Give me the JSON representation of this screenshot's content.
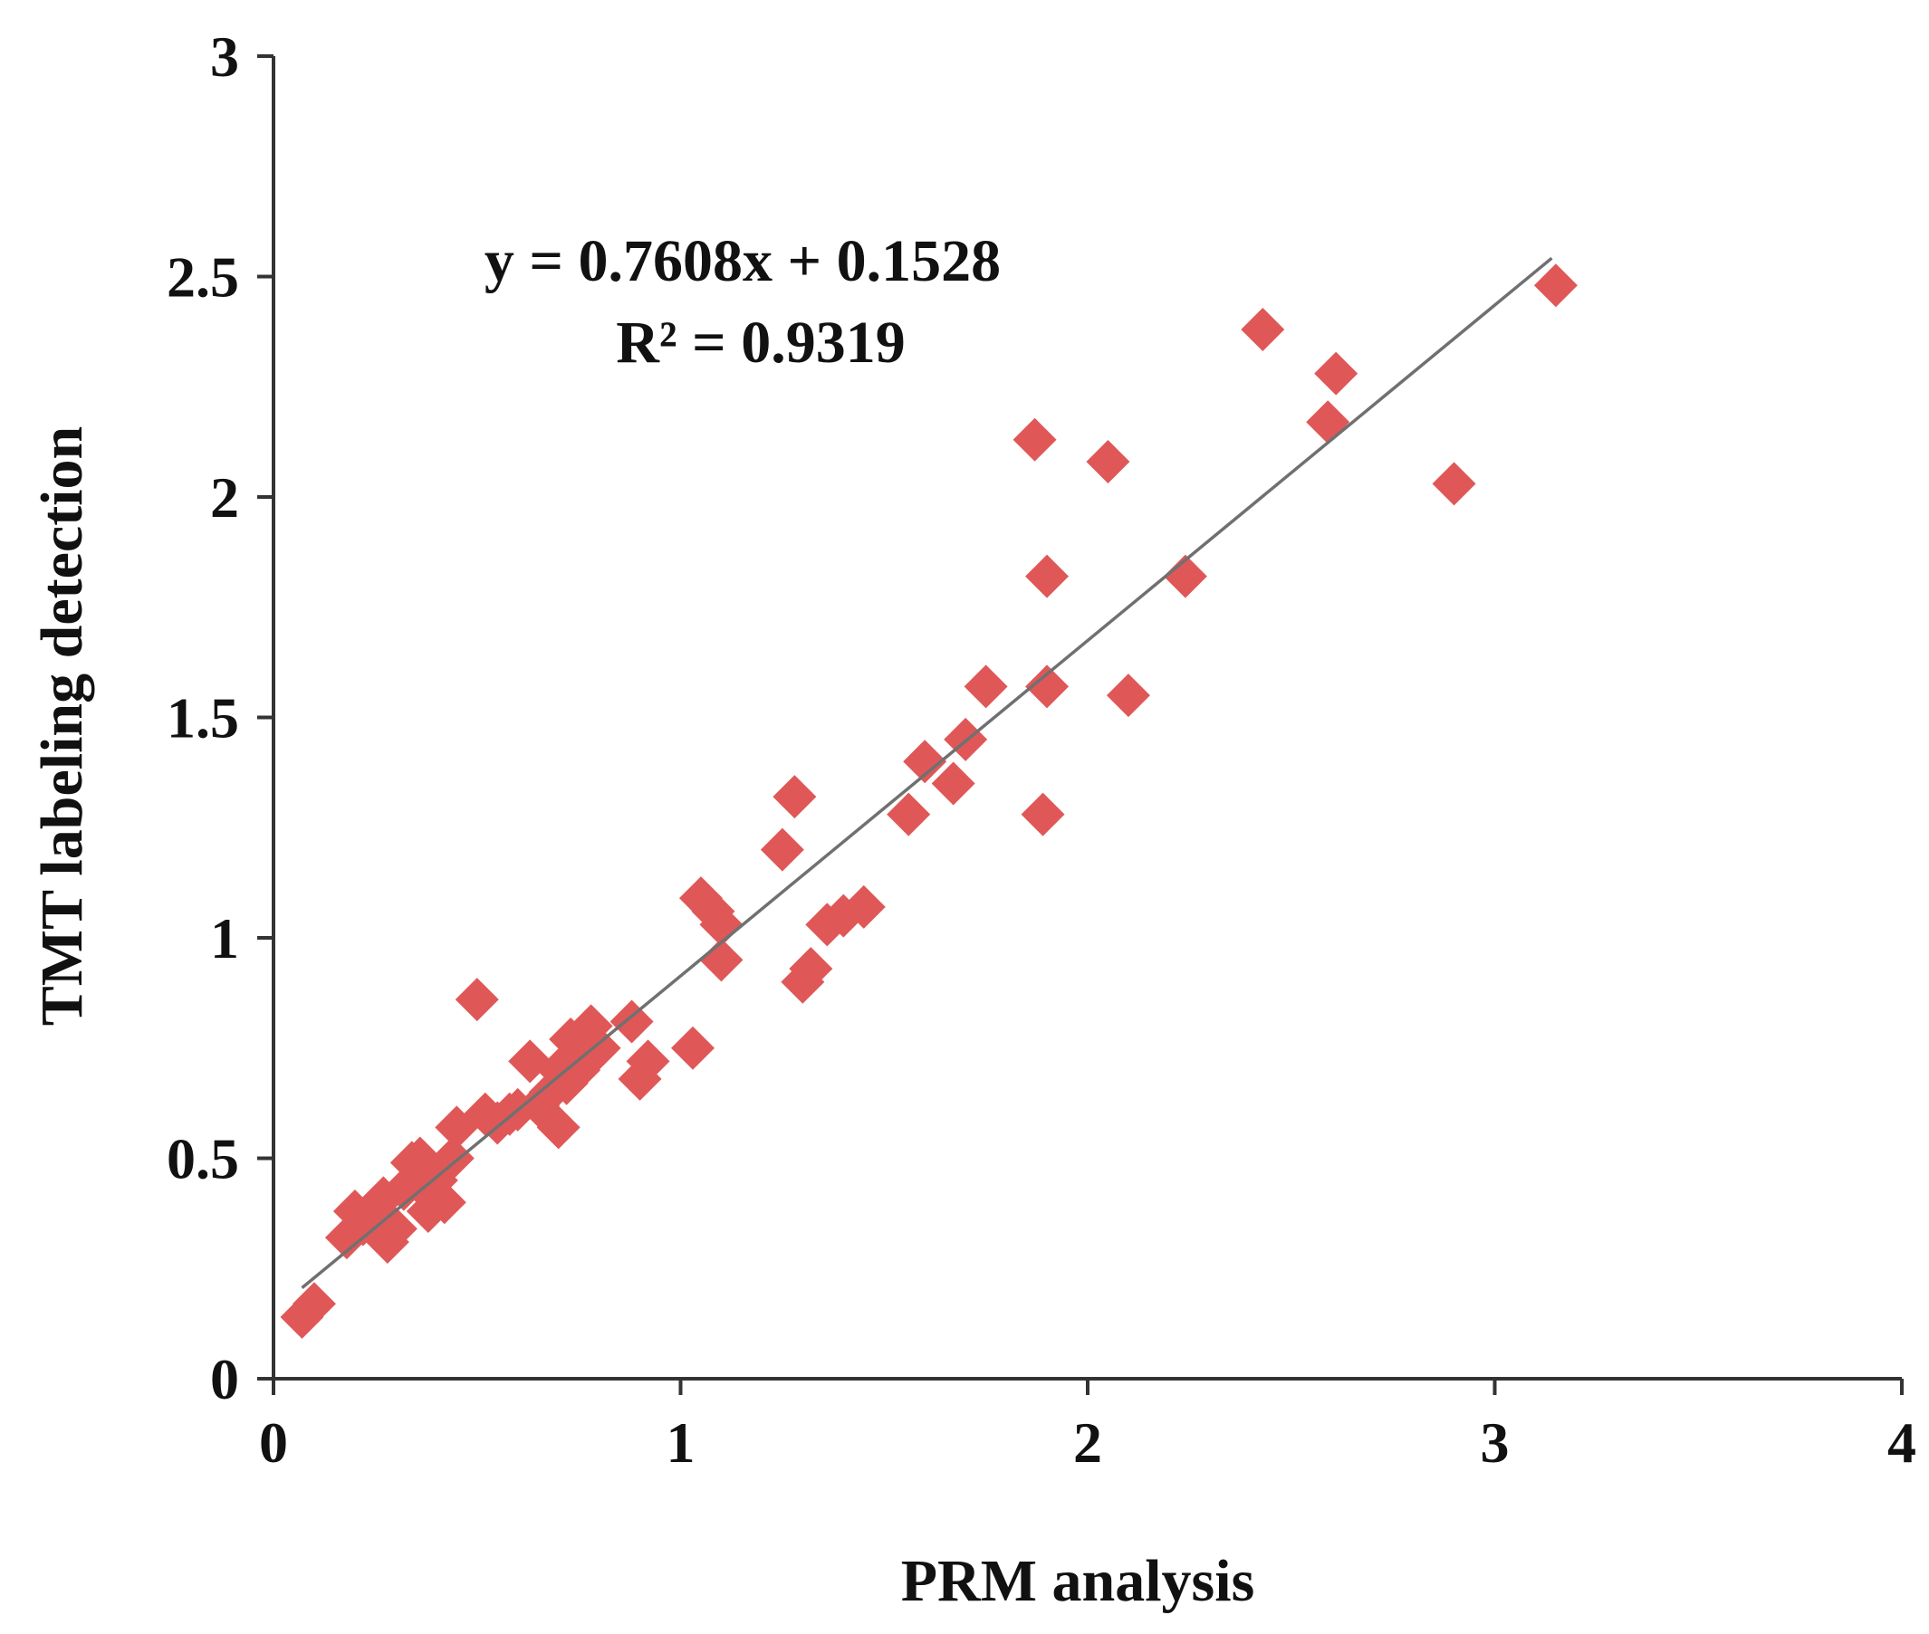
{
  "chart_data": {
    "type": "scatter",
    "xlabel": "PRM analysis",
    "ylabel": "TMT labeling detection",
    "xlim": [
      0,
      4
    ],
    "ylim": [
      0,
      3
    ],
    "xticks": [
      "0",
      "1",
      "2",
      "3",
      "4"
    ],
    "yticks": [
      "0",
      "0.5",
      "1",
      "1.5",
      "2",
      "2.5",
      "3"
    ],
    "grid": false,
    "legend": "none",
    "marker": "diamond",
    "marker_color": "#e05757",
    "trendline_color": "#707070",
    "trendline": {
      "slope": 0.7608,
      "intercept": 0.1528,
      "x_range": [
        0.07,
        3.14
      ],
      "equation": "y = 0.7608x + 0.1528",
      "r_squared": "R² = 0.9319"
    },
    "series": [
      {
        "x": [
          0.07,
          0.1,
          0.18,
          0.2,
          0.22,
          0.25,
          0.27,
          0.28,
          0.3,
          0.32,
          0.34,
          0.35,
          0.36,
          0.38,
          0.4,
          0.42,
          0.44,
          0.45,
          0.5,
          0.52,
          0.55,
          0.58,
          0.6,
          0.63,
          0.65,
          0.68,
          0.7,
          0.7,
          0.72,
          0.73,
          0.75,
          0.76,
          0.78,
          0.8,
          0.88,
          0.9,
          0.92,
          1.03,
          1.05,
          1.08,
          1.1,
          1.1,
          1.25,
          1.28,
          1.3,
          1.32,
          1.36,
          1.4,
          1.45,
          1.56,
          1.6,
          1.67,
          1.7,
          1.75,
          1.87,
          1.89,
          1.9,
          1.9,
          2.05,
          2.1,
          2.24,
          2.43,
          2.59,
          2.61,
          2.9,
          3.15
        ],
        "y": [
          0.14,
          0.17,
          0.32,
          0.38,
          0.35,
          0.36,
          0.41,
          0.31,
          0.34,
          0.43,
          0.49,
          0.45,
          0.5,
          0.38,
          0.45,
          0.4,
          0.5,
          0.57,
          0.86,
          0.6,
          0.58,
          0.6,
          0.61,
          0.72,
          0.62,
          0.65,
          0.57,
          0.7,
          0.67,
          0.77,
          0.7,
          0.72,
          0.8,
          0.75,
          0.81,
          0.68,
          0.72,
          0.75,
          1.09,
          1.06,
          0.95,
          1.03,
          1.2,
          1.32,
          0.9,
          0.93,
          1.03,
          1.05,
          1.07,
          1.28,
          1.4,
          1.35,
          1.45,
          1.57,
          2.13,
          1.28,
          1.82,
          1.57,
          2.08,
          1.55,
          1.82,
          2.38,
          2.17,
          2.28,
          2.03,
          2.48
        ]
      }
    ]
  }
}
